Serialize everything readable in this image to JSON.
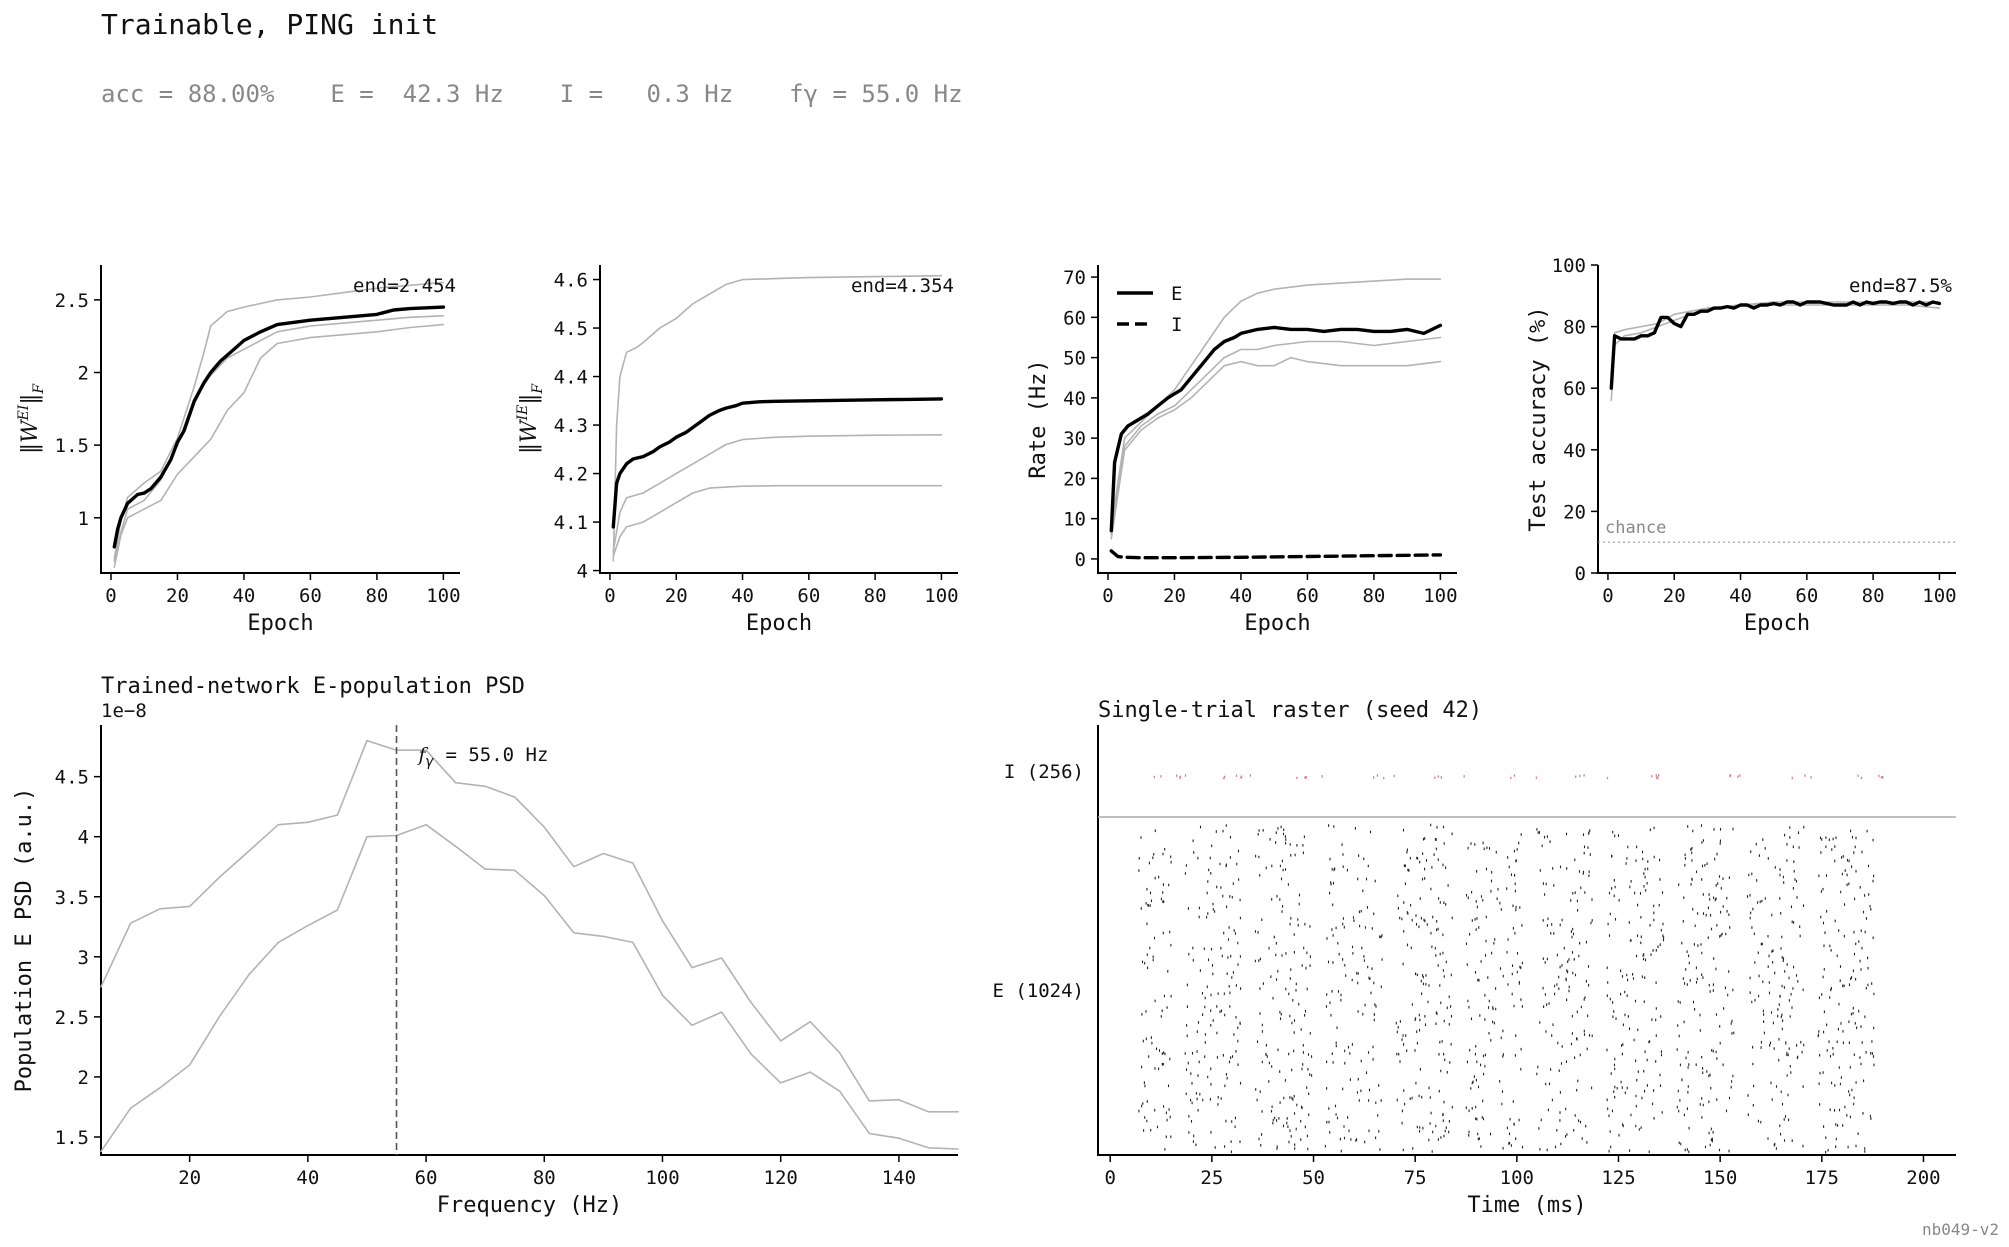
{
  "header": {
    "title": "Trainable, PING init",
    "stats": [
      "acc = 88.00%",
      "E =  42.3 Hz",
      "I =   0.3 Hz",
      "fγ = 55.0 Hz"
    ]
  },
  "footer": {
    "tag": "nb049-v2"
  },
  "colors": {
    "main": "#000000",
    "seed": "#b3b3b3",
    "chance": "#999999",
    "spike_e": "#222222",
    "spike_i": "#d98080"
  },
  "chart_data": [
    {
      "id": "wei",
      "type": "line",
      "xlabel": "Epoch",
      "ylabel": "‖W^EI‖_F",
      "xlim": [
        -3,
        105
      ],
      "ylim": [
        0.62,
        2.74
      ],
      "xticks": [
        0,
        20,
        40,
        60,
        80,
        100
      ],
      "yticks": [
        1.0,
        1.5,
        2.0,
        2.5
      ],
      "annotation": "end=2.454",
      "mean": {
        "x": [
          1,
          2,
          3,
          5,
          8,
          10,
          12,
          15,
          18,
          20,
          22,
          25,
          28,
          30,
          33,
          35,
          38,
          40,
          45,
          50,
          60,
          70,
          80,
          85,
          90,
          100
        ],
        "y": [
          0.8,
          0.92,
          1.0,
          1.1,
          1.16,
          1.17,
          1.2,
          1.28,
          1.4,
          1.52,
          1.6,
          1.8,
          1.93,
          2.0,
          2.08,
          2.12,
          2.18,
          2.22,
          2.28,
          2.33,
          2.36,
          2.38,
          2.4,
          2.43,
          2.44,
          2.45
        ]
      },
      "seeds": [
        {
          "x": [
            1,
            3,
            5,
            10,
            15,
            20,
            25,
            28,
            30,
            35,
            40,
            50,
            60,
            70,
            80,
            90,
            100
          ],
          "y": [
            0.72,
            0.98,
            1.14,
            1.24,
            1.32,
            1.55,
            1.9,
            2.14,
            2.32,
            2.42,
            2.45,
            2.5,
            2.52,
            2.55,
            2.58,
            2.6,
            2.62
          ]
        },
        {
          "x": [
            1,
            3,
            5,
            10,
            15,
            20,
            25,
            30,
            35,
            40,
            50,
            60,
            70,
            80,
            90,
            100
          ],
          "y": [
            0.7,
            0.9,
            1.06,
            1.12,
            1.26,
            1.5,
            1.82,
            1.98,
            2.1,
            2.16,
            2.28,
            2.32,
            2.34,
            2.36,
            2.38,
            2.39
          ]
        },
        {
          "x": [
            1,
            3,
            5,
            10,
            15,
            20,
            25,
            30,
            35,
            40,
            45,
            50,
            60,
            70,
            80,
            90,
            100
          ],
          "y": [
            0.66,
            0.88,
            1.0,
            1.06,
            1.12,
            1.3,
            1.42,
            1.54,
            1.74,
            1.86,
            2.1,
            2.2,
            2.24,
            2.26,
            2.28,
            2.31,
            2.33
          ]
        }
      ]
    },
    {
      "id": "wie",
      "type": "line",
      "xlabel": "Epoch",
      "ylabel": "‖W^IE‖_F",
      "xlim": [
        -3,
        105
      ],
      "ylim": [
        3.995,
        4.63
      ],
      "xticks": [
        0,
        20,
        40,
        60,
        80,
        100
      ],
      "yticks": [
        4.0,
        4.1,
        4.2,
        4.3,
        4.4,
        4.5,
        4.6
      ],
      "annotation": "end=4.354",
      "mean": {
        "x": [
          1,
          2,
          3,
          5,
          7,
          10,
          13,
          15,
          18,
          20,
          23,
          25,
          28,
          30,
          33,
          35,
          38,
          40,
          45,
          50,
          60,
          70,
          80,
          90,
          100
        ],
        "y": [
          4.09,
          4.18,
          4.2,
          4.22,
          4.23,
          4.235,
          4.245,
          4.255,
          4.265,
          4.275,
          4.285,
          4.295,
          4.31,
          4.32,
          4.33,
          4.335,
          4.34,
          4.345,
          4.348,
          4.349,
          4.35,
          4.351,
          4.352,
          4.353,
          4.354
        ]
      },
      "seeds": [
        {
          "x": [
            1,
            2,
            3,
            5,
            8,
            10,
            15,
            20,
            25,
            30,
            35,
            40,
            50,
            60,
            70,
            80,
            90,
            100
          ],
          "y": [
            4.02,
            4.3,
            4.4,
            4.45,
            4.46,
            4.47,
            4.5,
            4.52,
            4.55,
            4.57,
            4.59,
            4.6,
            4.602,
            4.604,
            4.605,
            4.606,
            4.607,
            4.608
          ]
        },
        {
          "x": [
            1,
            3,
            5,
            10,
            15,
            20,
            25,
            30,
            35,
            40,
            50,
            60,
            80,
            100
          ],
          "y": [
            4.04,
            4.12,
            4.15,
            4.16,
            4.18,
            4.2,
            4.22,
            4.24,
            4.26,
            4.27,
            4.275,
            4.277,
            4.279,
            4.28
          ]
        },
        {
          "x": [
            1,
            3,
            5,
            10,
            15,
            20,
            25,
            30,
            35,
            40,
            50,
            60,
            80,
            100
          ],
          "y": [
            4.03,
            4.07,
            4.09,
            4.1,
            4.12,
            4.14,
            4.16,
            4.17,
            4.172,
            4.174,
            4.175,
            4.175,
            4.175,
            4.175
          ]
        }
      ]
    },
    {
      "id": "rate",
      "type": "line",
      "xlabel": "Epoch",
      "ylabel": "Rate (Hz)",
      "xlim": [
        -3,
        105
      ],
      "ylim": [
        -3.5,
        73
      ],
      "xticks": [
        0,
        20,
        40,
        60,
        80,
        100
      ],
      "yticks": [
        0,
        10,
        20,
        30,
        40,
        50,
        60,
        70
      ],
      "legend": {
        "position": "upper-left",
        "entries": [
          {
            "label": "E",
            "style": "solid"
          },
          {
            "label": "I",
            "style": "dashed"
          }
        ]
      },
      "E_mean": {
        "x": [
          1,
          2,
          4,
          6,
          8,
          10,
          12,
          15,
          18,
          20,
          22,
          25,
          28,
          30,
          32,
          35,
          38,
          40,
          45,
          50,
          55,
          60,
          65,
          70,
          75,
          80,
          85,
          90,
          95,
          100
        ],
        "y": [
          7,
          24,
          31,
          33,
          34,
          35,
          36,
          38,
          40,
          41,
          42,
          45,
          48,
          50,
          52,
          54,
          55,
          56,
          57,
          57.5,
          57,
          57,
          56.5,
          57,
          57,
          56.5,
          56.5,
          57,
          56,
          58
        ]
      },
      "I_mean": {
        "x": [
          1,
          3,
          5,
          10,
          20,
          40,
          60,
          80,
          100
        ],
        "y": [
          2,
          0.6,
          0.4,
          0.3,
          0.3,
          0.4,
          0.6,
          0.8,
          1.0
        ]
      },
      "seeds": [
        {
          "x": [
            1,
            5,
            10,
            15,
            20,
            25,
            30,
            35,
            40,
            45,
            50,
            60,
            70,
            80,
            90,
            100
          ],
          "y": [
            8,
            30,
            34,
            38,
            42,
            48,
            54,
            60,
            64,
            66,
            67,
            68,
            68.5,
            69,
            69.5,
            69.5
          ]
        },
        {
          "x": [
            1,
            5,
            10,
            15,
            20,
            25,
            30,
            35,
            40,
            45,
            50,
            60,
            70,
            80,
            90,
            100
          ],
          "y": [
            6,
            28,
            33,
            36,
            38,
            42,
            46,
            50,
            52,
            52,
            53,
            54,
            54,
            53,
            54,
            55
          ]
        },
        {
          "x": [
            1,
            5,
            10,
            15,
            20,
            25,
            30,
            35,
            40,
            45,
            50,
            55,
            60,
            70,
            80,
            90,
            100
          ],
          "y": [
            5,
            27,
            32,
            35,
            37,
            40,
            44,
            48,
            49,
            48,
            48,
            50,
            49,
            48,
            48,
            48,
            49
          ]
        }
      ]
    },
    {
      "id": "acc",
      "type": "line",
      "xlabel": "Epoch",
      "ylabel": "Test accuracy (%)",
      "xlim": [
        -3,
        105
      ],
      "ylim": [
        0,
        100
      ],
      "xticks": [
        0,
        20,
        40,
        60,
        80,
        100
      ],
      "yticks": [
        0,
        20,
        40,
        60,
        80,
        100
      ],
      "annotation": "end=87.5%",
      "chance": {
        "y": 10,
        "label": "chance"
      },
      "mean": {
        "x": [
          1,
          2,
          4,
          6,
          8,
          10,
          12,
          14,
          16,
          18,
          20,
          22,
          24,
          26,
          28,
          30,
          32,
          34,
          36,
          38,
          40,
          42,
          44,
          46,
          48,
          50,
          52,
          54,
          56,
          58,
          60,
          62,
          64,
          66,
          68,
          70,
          72,
          74,
          76,
          78,
          80,
          82,
          84,
          86,
          88,
          90,
          92,
          94,
          96,
          98,
          100
        ],
        "y": [
          60,
          77,
          76,
          76,
          76,
          77,
          77,
          78,
          83,
          83,
          81,
          80,
          84,
          84,
          85,
          85,
          86,
          86,
          86.5,
          86,
          87,
          87,
          86,
          87,
          87,
          87.5,
          87,
          88,
          88,
          87,
          88,
          88,
          88,
          87.5,
          87,
          87,
          87,
          88,
          87,
          88,
          87.5,
          88,
          88,
          87.5,
          88,
          88,
          87,
          88,
          87,
          88,
          87.5
        ]
      },
      "seeds": [
        {
          "x": [
            1,
            2,
            5,
            10,
            15,
            20,
            25,
            30,
            40,
            50,
            60,
            70,
            80,
            90,
            100
          ],
          "y": [
            56,
            74,
            77,
            78,
            80,
            82,
            84,
            86,
            87,
            88,
            88,
            88,
            88,
            88,
            88
          ]
        },
        {
          "x": [
            1,
            2,
            5,
            10,
            15,
            20,
            25,
            30,
            40,
            50,
            60,
            70,
            80,
            90,
            100
          ],
          "y": [
            64,
            78,
            79,
            80,
            81,
            84,
            85,
            86,
            87,
            87,
            87,
            87,
            87,
            87,
            86
          ]
        }
      ]
    },
    {
      "id": "psd",
      "type": "line",
      "title": "Trained-network E-population PSD",
      "xlabel": "Frequency (Hz)",
      "ylabel": "Population E PSD (a.u.)",
      "yscale_label": "1e−8",
      "xlim": [
        5,
        150
      ],
      "ylim": [
        1.35,
        4.93
      ],
      "xticks": [
        20,
        40,
        60,
        80,
        100,
        120,
        140
      ],
      "yticks": [
        1.5,
        2.0,
        2.5,
        3.0,
        3.5,
        4.0,
        4.5
      ],
      "vline": {
        "x": 55,
        "label_symbol": "f",
        "label_sub": "γ",
        "label_rest": " = 55.0 Hz"
      },
      "seeds": [
        {
          "x": [
            5,
            10,
            15,
            20,
            25,
            30,
            35,
            40,
            45,
            50,
            55,
            60,
            65,
            70,
            75,
            80,
            85,
            90,
            95,
            100,
            105,
            110,
            115,
            120,
            125,
            130,
            135,
            140,
            145,
            150
          ],
          "y": [
            2.75,
            3.28,
            3.4,
            3.42,
            3.66,
            3.88,
            4.1,
            4.12,
            4.18,
            4.8,
            4.72,
            4.72,
            4.45,
            4.42,
            4.33,
            4.08,
            3.75,
            3.86,
            3.78,
            3.3,
            2.91,
            2.99,
            2.62,
            2.3,
            2.46,
            2.2,
            1.8,
            1.81,
            1.71,
            1.71
          ]
        },
        {
          "x": [
            5,
            10,
            15,
            20,
            25,
            30,
            35,
            40,
            45,
            50,
            55,
            60,
            65,
            70,
            75,
            80,
            85,
            90,
            95,
            100,
            105,
            110,
            115,
            120,
            125,
            130,
            135,
            140,
            145,
            150
          ],
          "y": [
            1.38,
            1.74,
            1.91,
            2.1,
            2.5,
            2.85,
            3.12,
            3.26,
            3.39,
            4.0,
            4.01,
            4.1,
            3.92,
            3.73,
            3.72,
            3.51,
            3.2,
            3.17,
            3.12,
            2.68,
            2.43,
            2.54,
            2.19,
            1.95,
            2.04,
            1.88,
            1.53,
            1.49,
            1.41,
            1.4
          ]
        }
      ]
    },
    {
      "id": "raster",
      "type": "scatter",
      "title": "Single-trial raster (seed 42)",
      "xlabel": "Time (ms)",
      "xlim": [
        -3,
        208
      ],
      "xticks": [
        0,
        25,
        50,
        75,
        100,
        125,
        150,
        175,
        200
      ],
      "ylabels": [
        "I (256)",
        "E (1024)"
      ],
      "populations": {
        "E": 1024,
        "I": 256
      },
      "duration_ms": 200
    }
  ]
}
